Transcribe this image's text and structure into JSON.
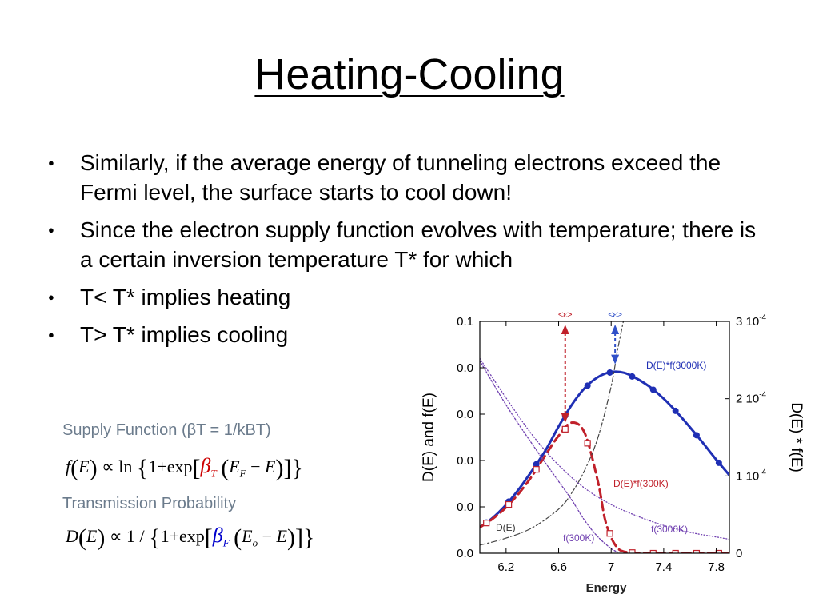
{
  "slide": {
    "title": "Heating-Cooling",
    "bullets": [
      "Similarly, if the average energy of tunneling electrons exceed the Fermi level, the surface starts to cool down!",
      "Since the electron supply function evolves with temperature; there is a certain inversion temperature T* for which",
      "T< T* implies heating",
      "T> T* implies cooling"
    ]
  },
  "formulas": {
    "supply_caption": "Supply Function (βT = 1/kBT)",
    "transmission_caption": "Transmission Probability",
    "supply": {
      "f": "f",
      "E": "E",
      "prop": "∝ ln",
      "one": "1+",
      "exp": "exp",
      "beta": "β",
      "beta_sub": "T",
      "EF": "E",
      "EF_sub": "F",
      "minus": " − ",
      "E2": "E"
    },
    "transmission": {
      "D": "D",
      "E": "E",
      "prop": "∝ 1 /",
      "one": "1+",
      "exp": "exp",
      "beta": "β",
      "beta_sub": "F",
      "Eo": "E",
      "Eo_sub": "o",
      "minus": " − ",
      "E2": "E"
    },
    "colors": {
      "beta_T": "#cc0000",
      "beta_F": "#0000cc"
    }
  },
  "chart_data": {
    "type": "line",
    "xlabel": "Energy",
    "ylabel_left": "D(E) and f(E)",
    "ylabel_right": "D(E) * f(E)",
    "x_ticks": [
      "6.2",
      "6.6",
      "7",
      "7.4",
      "7.8"
    ],
    "y_ticks_left": [
      "0.1",
      "0.0",
      "0.0",
      "0.0",
      "0.0",
      "0.0"
    ],
    "y_ticks_right": [
      {
        "base": "3 10",
        "exp": "-4"
      },
      {
        "base": "2 10",
        "exp": "-4"
      },
      {
        "base": "1 10",
        "exp": "-4"
      },
      {
        "base": "0",
        "exp": ""
      }
    ],
    "xlim": [
      6.0,
      7.9
    ],
    "ylim_left": [
      0,
      0.1
    ],
    "ylim_right": [
      0,
      0.0003
    ],
    "series": [
      {
        "name": "D(E)*f(3000K)",
        "color": "#1f2fb4",
        "axis": "right",
        "x": [
          6.0,
          6.1,
          6.2,
          6.3,
          6.4,
          6.5,
          6.6,
          6.7,
          6.8,
          6.9,
          7.0,
          7.1,
          7.2,
          7.3,
          7.4,
          7.5,
          7.6,
          7.7,
          7.8,
          7.9
        ],
        "y": [
          3.35e-05,
          4.6e-05,
          6.27e-05,
          8.35e-05,
          0.0001075,
          0.000133,
          0.000164,
          0.000192,
          0.000214,
          0.000228,
          0.0002345,
          0.0002335,
          0.0002255,
          0.0002145,
          0.0002,
          0.0001825,
          0.000163,
          0.0001425,
          0.000121,
          0.000101
        ]
      },
      {
        "name": "D(E)*f(300K)",
        "color": "#c0202a",
        "axis": "right",
        "x": [
          6.0,
          6.1,
          6.2,
          6.3,
          6.4,
          6.5,
          6.6,
          6.7,
          6.8,
          6.9,
          6.95,
          7.0,
          7.05,
          7.1,
          7.2,
          7.3,
          7.5,
          7.7,
          7.9
        ],
        "y": [
          3.35e-05,
          4.48e-05,
          5.93e-05,
          7.8e-05,
          0.0001005,
          0.000127,
          0.000152,
          0.000169,
          0.000155,
          9.2e-05,
          4.6e-05,
          2.05e-05,
          6.5e-06,
          2e-06,
          0,
          0,
          0,
          0,
          0
        ]
      },
      {
        "name": "D(E)",
        "color": "#444444",
        "axis": "left",
        "x": [
          6.0,
          6.2,
          6.4,
          6.6,
          6.7,
          6.8,
          6.9,
          7.0,
          7.05,
          7.1
        ],
        "y": [
          0.0035,
          0.0065,
          0.011,
          0.019,
          0.026,
          0.036,
          0.05,
          0.072,
          0.088,
          0.102
        ]
      },
      {
        "name": "f(300K)",
        "color": "#7040b0",
        "axis": "left",
        "x": [
          6.0,
          6.2,
          6.4,
          6.6,
          6.7,
          6.8,
          6.9,
          7.0,
          7.05
        ],
        "y": [
          0.083,
          0.064,
          0.047,
          0.031,
          0.023,
          0.014,
          0.007,
          0.002,
          0.0005
        ]
      },
      {
        "name": "f(3000K)",
        "color": "#7040b0",
        "axis": "left",
        "x": [
          6.0,
          6.2,
          6.4,
          6.6,
          6.8,
          7.0,
          7.2,
          7.4,
          7.6,
          7.8,
          7.9
        ],
        "y": [
          0.084,
          0.067,
          0.051,
          0.038,
          0.028,
          0.021,
          0.016,
          0.012,
          0.009,
          0.007,
          0.006
        ]
      }
    ],
    "markers": {
      "circles_3000K_x": [
        6.05,
        6.22,
        6.43,
        6.65,
        6.82,
        6.99,
        7.16,
        7.32,
        7.49,
        7.65,
        7.82
      ],
      "squares_300K_x": [
        6.05,
        6.22,
        6.43,
        6.65,
        6.82,
        6.99,
        7.16,
        7.32,
        7.49,
        7.65,
        7.82
      ]
    },
    "annotations": [
      {
        "text": "<ε>",
        "x": 6.65,
        "color": "#c0202a"
      },
      {
        "text": "<ε>",
        "x": 7.03,
        "color": "#3050c8"
      }
    ],
    "labels": {
      "D_f3000": "D(E)*f(3000K)",
      "D_f300": "D(E)*f(300K)",
      "DE": "D(E)",
      "f300": "f(300K)",
      "f3000": "f(3000K)"
    }
  }
}
